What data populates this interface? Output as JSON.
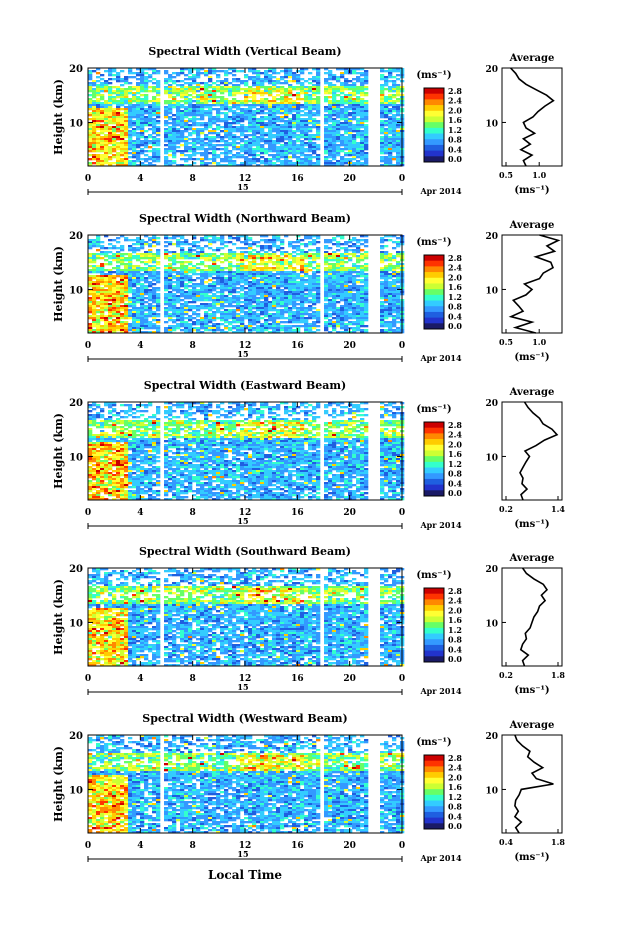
{
  "figure": {
    "x_axis_label": "Local Time",
    "height_label": "Height (km)",
    "date_label": "Apr 2014",
    "day_label": "15",
    "colorbar_unit": "(ms⁻¹)",
    "average_title": "Average",
    "average_unit": "(ms⁻¹)"
  },
  "colors": {
    "scale": [
      "#1a1a66",
      "#2233cc",
      "#1f5fe0",
      "#3399ff",
      "#33ccff",
      "#33ffcc",
      "#66ff66",
      "#ccff33",
      "#ffff33",
      "#ffcc00",
      "#ff8800",
      "#ff3300",
      "#cc0000"
    ]
  },
  "chart_data": [
    {
      "type": "heatmap",
      "title": "Spectral Width (Vertical Beam)",
      "xlabel": "",
      "ylabel": "Height (km)",
      "xlim": [
        0,
        24
      ],
      "ylim": [
        2,
        20
      ],
      "x_ticks": [
        "0",
        "4",
        "8",
        "12",
        "16",
        "20",
        "0"
      ],
      "y_ticks": [
        "20",
        "10"
      ],
      "colorbar": {
        "ticks": [
          "2.8",
          "2.4",
          "2.0",
          "1.6",
          "1.2",
          "0.8",
          "0.4",
          "0.0"
        ],
        "range": [
          0,
          3.0
        ]
      },
      "gaps_hours": [
        [
          5.5,
          5.8
        ],
        [
          17.5,
          17.8
        ],
        [
          21.2,
          22.3
        ]
      ],
      "average_profile": {
        "title": "Average",
        "xlim": [
          0.5,
          1.2
        ],
        "x_ticks": [
          "0.5",
          "1.0"
        ],
        "y_ticks": [
          "20",
          "10"
        ],
        "points": [
          [
            0.78,
            2
          ],
          [
            0.75,
            3
          ],
          [
            0.85,
            4
          ],
          [
            0.72,
            5
          ],
          [
            0.83,
            6
          ],
          [
            0.75,
            7
          ],
          [
            0.88,
            8
          ],
          [
            0.78,
            9
          ],
          [
            0.75,
            10
          ],
          [
            0.86,
            11
          ],
          [
            0.92,
            12
          ],
          [
            1.0,
            13
          ],
          [
            1.1,
            14
          ],
          [
            1.02,
            15
          ],
          [
            0.9,
            16
          ],
          [
            0.78,
            17
          ],
          [
            0.7,
            18
          ],
          [
            0.66,
            19
          ],
          [
            0.6,
            20
          ]
        ]
      }
    },
    {
      "type": "heatmap",
      "title": "Spectral Width (Northward Beam)",
      "xlabel": "",
      "ylabel": "Height (km)",
      "xlim": [
        0,
        24
      ],
      "ylim": [
        2,
        20
      ],
      "x_ticks": [
        "0",
        "4",
        "8",
        "12",
        "16",
        "20",
        "0"
      ],
      "y_ticks": [
        "20",
        "10"
      ],
      "colorbar": {
        "ticks": [
          "2.8",
          "2.4",
          "2.0",
          "1.6",
          "1.2",
          "0.8",
          "0.4",
          "0.0"
        ],
        "range": [
          0,
          3.0
        ]
      },
      "gaps_hours": [
        [
          5.5,
          5.8
        ],
        [
          17.5,
          17.8
        ],
        [
          21.2,
          22.3
        ]
      ],
      "average_profile": {
        "title": "Average",
        "xlim": [
          0.5,
          1.3
        ],
        "x_ticks": [
          "0.5",
          "1.0"
        ],
        "y_ticks": [
          "20",
          "10"
        ],
        "points": [
          [
            0.95,
            2
          ],
          [
            0.68,
            3
          ],
          [
            0.9,
            4
          ],
          [
            0.62,
            5
          ],
          [
            0.78,
            6
          ],
          [
            0.72,
            7
          ],
          [
            0.65,
            8
          ],
          [
            0.82,
            9
          ],
          [
            0.9,
            10
          ],
          [
            0.8,
            11
          ],
          [
            1.0,
            12
          ],
          [
            1.05,
            13
          ],
          [
            1.18,
            14
          ],
          [
            1.15,
            15
          ],
          [
            0.95,
            16
          ],
          [
            1.2,
            17
          ],
          [
            1.1,
            18
          ],
          [
            1.25,
            19
          ],
          [
            1.0,
            20
          ]
        ]
      }
    },
    {
      "type": "heatmap",
      "title": "Spectral Width (Eastward Beam)",
      "xlabel": "",
      "ylabel": "Height (km)",
      "xlim": [
        0,
        24
      ],
      "ylim": [
        2,
        20
      ],
      "x_ticks": [
        "0",
        "4",
        "8",
        "12",
        "16",
        "20",
        "0"
      ],
      "y_ticks": [
        "20",
        "10"
      ],
      "colorbar": {
        "ticks": [
          "2.8",
          "2.4",
          "2.0",
          "1.6",
          "1.2",
          "0.8",
          "0.4",
          "0.0"
        ],
        "range": [
          0,
          3.0
        ]
      },
      "gaps_hours": [
        [
          5.5,
          5.8
        ],
        [
          17.5,
          17.8
        ],
        [
          21.2,
          22.3
        ]
      ],
      "average_profile": {
        "title": "Average",
        "xlim": [
          0.2,
          1.4
        ],
        "x_ticks": [
          "0.2",
          "1.4"
        ],
        "y_ticks": [
          "20",
          "10"
        ],
        "points": [
          [
            0.62,
            2
          ],
          [
            0.58,
            3
          ],
          [
            0.7,
            4
          ],
          [
            0.6,
            5
          ],
          [
            0.62,
            6
          ],
          [
            0.56,
            7
          ],
          [
            0.62,
            8
          ],
          [
            0.68,
            9
          ],
          [
            0.75,
            10
          ],
          [
            0.66,
            11
          ],
          [
            0.88,
            12
          ],
          [
            1.05,
            13
          ],
          [
            1.3,
            14
          ],
          [
            1.2,
            15
          ],
          [
            1.02,
            16
          ],
          [
            0.95,
            17
          ],
          [
            0.82,
            18
          ],
          [
            0.72,
            19
          ],
          [
            0.65,
            20
          ]
        ]
      }
    },
    {
      "type": "heatmap",
      "title": "Spectral Width (Southward Beam)",
      "xlabel": "",
      "ylabel": "Height (km)",
      "xlim": [
        0,
        24
      ],
      "ylim": [
        2,
        20
      ],
      "x_ticks": [
        "0",
        "4",
        "8",
        "12",
        "16",
        "20",
        "0"
      ],
      "y_ticks": [
        "20",
        "10"
      ],
      "colorbar": {
        "ticks": [
          "2.8",
          "2.4",
          "2.0",
          "1.6",
          "1.2",
          "0.8",
          "0.4",
          "0.0"
        ],
        "range": [
          0,
          3.0
        ]
      },
      "gaps_hours": [
        [
          5.5,
          5.8
        ],
        [
          17.5,
          17.8
        ],
        [
          21.2,
          22.3
        ]
      ],
      "average_profile": {
        "title": "Average",
        "xlim": [
          0.2,
          1.8
        ],
        "x_ticks": [
          "0.2",
          "1.8"
        ],
        "y_ticks": [
          "20",
          "10"
        ],
        "points": [
          [
            0.8,
            2
          ],
          [
            0.75,
            3
          ],
          [
            0.9,
            4
          ],
          [
            0.7,
            5
          ],
          [
            0.75,
            6
          ],
          [
            0.85,
            7
          ],
          [
            0.82,
            8
          ],
          [
            0.95,
            9
          ],
          [
            1.0,
            10
          ],
          [
            1.05,
            11
          ],
          [
            1.15,
            12
          ],
          [
            1.2,
            13
          ],
          [
            1.35,
            14
          ],
          [
            1.25,
            15
          ],
          [
            1.4,
            16
          ],
          [
            1.3,
            17
          ],
          [
            1.05,
            18
          ],
          [
            0.85,
            19
          ],
          [
            0.75,
            20
          ]
        ]
      }
    },
    {
      "type": "heatmap",
      "title": "Spectral Width (Westward Beam)",
      "xlabel": "Local Time",
      "ylabel": "Height (km)",
      "xlim": [
        0,
        24
      ],
      "ylim": [
        2,
        20
      ],
      "x_ticks": [
        "0",
        "4",
        "8",
        "12",
        "16",
        "20",
        "0"
      ],
      "y_ticks": [
        "20",
        "10"
      ],
      "colorbar": {
        "ticks": [
          "2.8",
          "2.4",
          "2.0",
          "1.6",
          "1.2",
          "0.8",
          "0.4",
          "0.0"
        ],
        "range": [
          0,
          3.0
        ]
      },
      "gaps_hours": [
        [
          5.5,
          5.8
        ],
        [
          17.5,
          17.8
        ],
        [
          21.2,
          22.3
        ]
      ],
      "average_profile": {
        "title": "Average",
        "xlim": [
          0.4,
          1.8
        ],
        "x_ticks": [
          "0.4",
          "1.8"
        ],
        "y_ticks": [
          "20",
          "10"
        ],
        "points": [
          [
            0.8,
            2
          ],
          [
            0.72,
            3
          ],
          [
            0.85,
            4
          ],
          [
            0.7,
            5
          ],
          [
            0.78,
            6
          ],
          [
            0.7,
            7
          ],
          [
            0.72,
            8
          ],
          [
            0.8,
            9
          ],
          [
            0.85,
            10
          ],
          [
            1.6,
            11
          ],
          [
            1.2,
            12
          ],
          [
            1.1,
            13
          ],
          [
            1.35,
            14
          ],
          [
            1.15,
            15
          ],
          [
            1.0,
            16
          ],
          [
            1.05,
            17
          ],
          [
            0.88,
            18
          ],
          [
            0.75,
            19
          ],
          [
            0.7,
            20
          ]
        ]
      }
    }
  ]
}
